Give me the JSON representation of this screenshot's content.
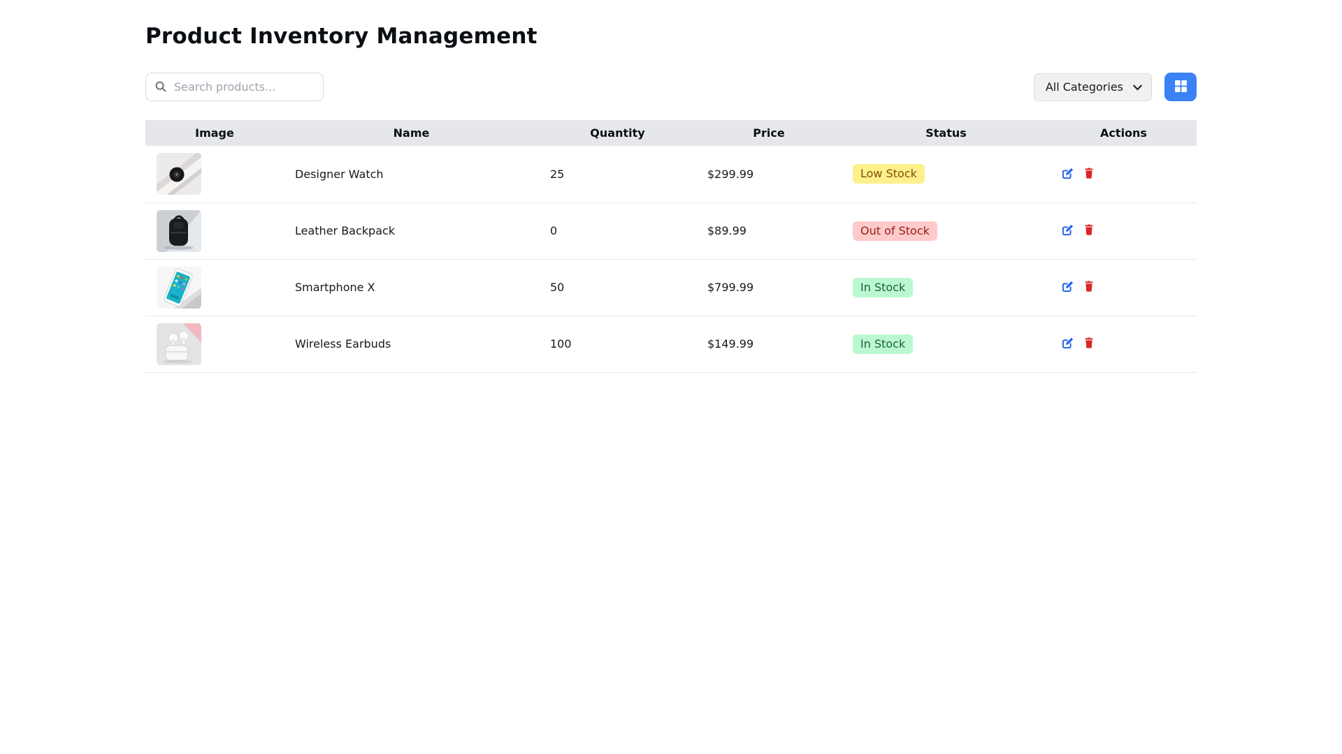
{
  "title": "Product Inventory Management",
  "search": {
    "placeholder": "Search products...",
    "value": ""
  },
  "category_filter": {
    "selected": "All Categories"
  },
  "view_toggle": {
    "icon": "grid-icon"
  },
  "table": {
    "columns": [
      "Image",
      "Name",
      "Quantity",
      "Price",
      "Status",
      "Actions"
    ],
    "rows": [
      {
        "image": "designer-watch",
        "name": "Designer Watch",
        "quantity": "25",
        "price": "$299.99",
        "status": {
          "label": "Low Stock",
          "type": "low"
        }
      },
      {
        "image": "leather-backpack",
        "name": "Leather Backpack",
        "quantity": "0",
        "price": "$89.99",
        "status": {
          "label": "Out of Stock",
          "type": "out"
        }
      },
      {
        "image": "smartphone-x",
        "name": "Smartphone X",
        "quantity": "50",
        "price": "$799.99",
        "status": {
          "label": "In Stock",
          "type": "in"
        }
      },
      {
        "image": "wireless-earbuds",
        "name": "Wireless Earbuds",
        "quantity": "100",
        "price": "$149.99",
        "status": {
          "label": "In Stock",
          "type": "in"
        }
      }
    ],
    "row_actions": [
      "edit",
      "delete"
    ]
  },
  "colors": {
    "accent_blue": "#3b82f6",
    "edit_icon": "#2563eb",
    "delete_icon": "#dc2626",
    "header_bg": "#e5e7eb",
    "row_border": "#e5e7eb",
    "status": {
      "low": {
        "bg": "#fef08a",
        "text": "#854d0e"
      },
      "out": {
        "bg": "#fecaca",
        "text": "#991b1b"
      },
      "in": {
        "bg": "#bbf7d0",
        "text": "#166534"
      }
    }
  }
}
